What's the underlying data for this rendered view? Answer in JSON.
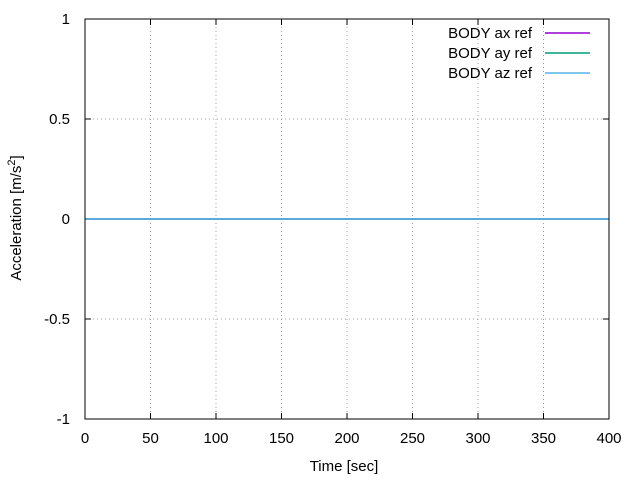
{
  "chart_data": {
    "type": "line",
    "title": "",
    "xlabel": "Time [sec]",
    "ylabel_main": "Acceleration [m/s",
    "ylabel_sup": "2",
    "ylabel_close": "]",
    "xlim": [
      0,
      400
    ],
    "ylim": [
      -1,
      1
    ],
    "xticks": [
      0,
      50,
      100,
      150,
      200,
      250,
      300,
      350,
      400
    ],
    "xtick_labels": [
      "0",
      "50",
      "100",
      "150",
      "200",
      "250",
      "300",
      "350",
      "400"
    ],
    "yticks": [
      -1,
      -0.5,
      0,
      0.5,
      1
    ],
    "ytick_labels": [
      "-1",
      "-0.5",
      "0",
      "0.5",
      "1"
    ],
    "grid": true,
    "legend_position": "top-right",
    "x": [
      0,
      400
    ],
    "series": [
      {
        "name": "BODY ax ref",
        "color": "#9400d3",
        "values": [
          0,
          0
        ]
      },
      {
        "name": "BODY ay ref",
        "color": "#009e73",
        "values": [
          0,
          0
        ]
      },
      {
        "name": "BODY az ref",
        "color": "#56b4e9",
        "values": [
          0,
          0
        ]
      }
    ]
  }
}
